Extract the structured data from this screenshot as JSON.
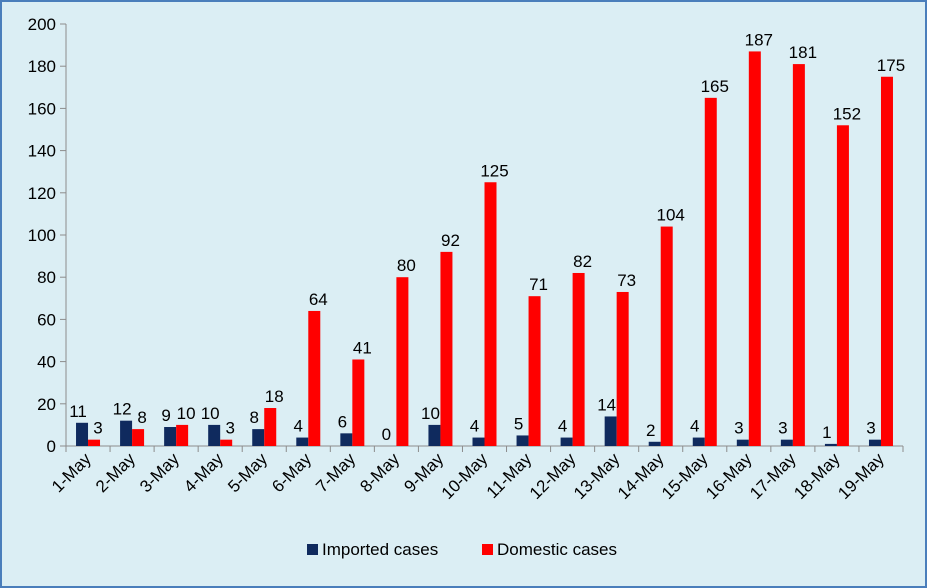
{
  "chart_data": {
    "type": "bar",
    "title": "",
    "xlabel": "",
    "ylabel": "",
    "ylim": [
      0,
      200
    ],
    "yticks": [
      0,
      20,
      40,
      60,
      80,
      100,
      120,
      140,
      160,
      180,
      200
    ],
    "categories": [
      "1-May",
      "2-May",
      "3-May",
      "4-May",
      "5-May",
      "6-May",
      "7-May",
      "8-May",
      "9-May",
      "10-May",
      "11-May",
      "12-May",
      "13-May",
      "14-May",
      "15-May",
      "16-May",
      "17-May",
      "18-May",
      "19-May"
    ],
    "series": [
      {
        "name": "Imported cases",
        "color": "#0f2a5e",
        "values": [
          11,
          12,
          9,
          10,
          8,
          4,
          6,
          0,
          10,
          4,
          5,
          4,
          14,
          2,
          4,
          3,
          3,
          1,
          3
        ]
      },
      {
        "name": "Domestic cases",
        "color": "#ff0000",
        "values": [
          3,
          8,
          10,
          3,
          18,
          64,
          41,
          80,
          92,
          125,
          71,
          82,
          73,
          104,
          165,
          187,
          181,
          152,
          175
        ]
      }
    ],
    "legend_position": "bottom",
    "grid": false,
    "background_color": "#dbeef4",
    "border_color": "#4a7ebb"
  }
}
